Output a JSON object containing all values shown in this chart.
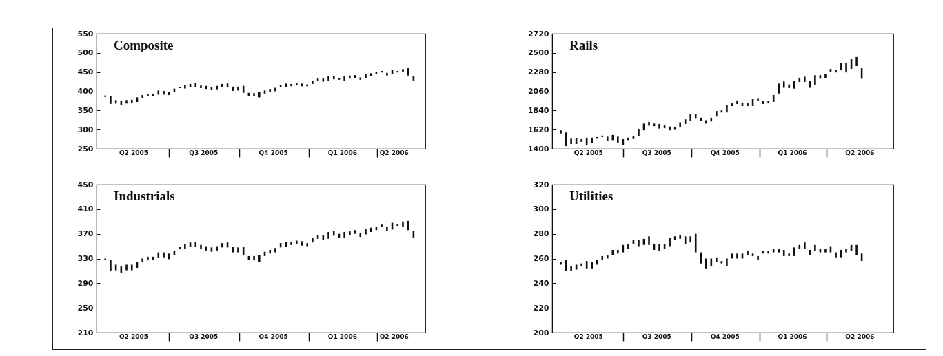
{
  "chart_data": [
    {
      "type": "bar",
      "title": "Composite",
      "color": "#111111",
      "x": [
        "2005-04-08",
        "2005-04-15",
        "2005-04-22",
        "2005-04-29",
        "2005-05-06",
        "2005-05-13",
        "2005-05-20",
        "2005-05-27",
        "2005-06-03",
        "2005-06-10",
        "2005-06-17",
        "2005-06-24",
        "2005-07-01",
        "2005-07-08",
        "2005-07-15",
        "2005-07-22",
        "2005-07-29",
        "2005-08-05",
        "2005-08-12",
        "2005-08-19",
        "2005-08-26",
        "2005-09-02",
        "2005-09-09",
        "2005-09-16",
        "2005-09-23",
        "2005-09-30",
        "2005-10-07",
        "2005-10-14",
        "2005-10-21",
        "2005-10-28",
        "2005-11-04",
        "2005-11-11",
        "2005-11-18",
        "2005-11-25",
        "2005-12-02",
        "2005-12-09",
        "2005-12-16",
        "2005-12-23",
        "2005-12-30",
        "2006-01-06",
        "2006-01-13",
        "2006-01-20",
        "2006-01-27",
        "2006-02-03",
        "2006-02-10",
        "2006-02-17",
        "2006-02-24",
        "2006-03-03",
        "2006-03-10",
        "2006-03-17",
        "2006-03-24",
        "2006-03-31",
        "2006-04-07",
        "2006-04-14",
        "2006-04-21",
        "2006-04-28",
        "2006-05-05",
        "2006-05-12",
        "2006-05-19"
      ],
      "base": [
        385,
        367,
        368,
        364,
        368,
        369,
        372,
        382,
        387,
        388,
        391,
        391,
        390,
        398,
        408,
        407,
        410,
        411,
        408,
        406,
        403,
        405,
        410,
        410,
        401,
        402,
        396,
        387,
        387,
        384,
        394,
        399,
        400,
        410,
        410,
        413,
        415,
        413,
        413,
        419,
        427,
        425,
        427,
        431,
        430,
        427,
        433,
        435,
        430,
        435,
        439,
        444,
        449,
        441,
        444,
        449,
        450,
        441,
        428
      ],
      "values": [
        4,
        20,
        9,
        11,
        9,
        9,
        12,
        8,
        6,
        5,
        11,
        10,
        8,
        9,
        2,
        10,
        9,
        10,
        7,
        8,
        7,
        9,
        9,
        10,
        11,
        10,
        18,
        9,
        8,
        14,
        8,
        7,
        9,
        7,
        10,
        6,
        6,
        7,
        5,
        9,
        6,
        8,
        12,
        9,
        5,
        12,
        8,
        7,
        6,
        11,
        8,
        6,
        4,
        7,
        12,
        4,
        8,
        19,
        12
      ],
      "xlim": [
        "2005-04-01",
        "2006-05-30"
      ],
      "ylim": [
        250,
        550
      ],
      "yticks": [
        250,
        300,
        350,
        400,
        450,
        500,
        550
      ],
      "xticks": [
        {
          "value": "2005-05-15",
          "label": "Q2 2005"
        },
        {
          "value": "2005-07-01",
          "label": null
        },
        {
          "value": "2005-08-15",
          "label": "Q3 2005"
        },
        {
          "value": "2005-10-01",
          "label": null
        },
        {
          "value": "2005-11-15",
          "label": "Q4 2005"
        },
        {
          "value": "2006-01-01",
          "label": null
        },
        {
          "value": "2006-02-14",
          "label": "Q1 2006"
        },
        {
          "value": "2006-04-01",
          "label": null
        },
        {
          "value": "2006-04-23",
          "label": "Q2 2006"
        }
      ]
    },
    {
      "type": "bar",
      "title": "Rails",
      "color": "#111111",
      "x": [
        "2005-04-08",
        "2005-04-15",
        "2005-04-22",
        "2005-04-29",
        "2005-05-06",
        "2005-05-13",
        "2005-05-20",
        "2005-05-27",
        "2005-06-03",
        "2005-06-10",
        "2005-06-17",
        "2005-06-24",
        "2005-07-01",
        "2005-07-08",
        "2005-07-15",
        "2005-07-22",
        "2005-07-29",
        "2005-08-05",
        "2005-08-12",
        "2005-08-19",
        "2005-08-26",
        "2005-09-02",
        "2005-09-09",
        "2005-09-16",
        "2005-09-23",
        "2005-09-30",
        "2005-10-07",
        "2005-10-14",
        "2005-10-21",
        "2005-10-28",
        "2005-11-04",
        "2005-11-11",
        "2005-11-18",
        "2005-11-25",
        "2005-12-02",
        "2005-12-09",
        "2005-12-16",
        "2005-12-23",
        "2005-12-30",
        "2006-01-06",
        "2006-01-13",
        "2006-01-20",
        "2006-01-27",
        "2006-02-03",
        "2006-02-10",
        "2006-02-17",
        "2006-02-24",
        "2006-03-03",
        "2006-03-10",
        "2006-03-17",
        "2006-03-24",
        "2006-03-31",
        "2006-04-07",
        "2006-04-14",
        "2006-04-21",
        "2006-04-28",
        "2006-05-05",
        "2006-05-12",
        "2006-05-19"
      ],
      "base": [
        1576,
        1431,
        1455,
        1455,
        1480,
        1439,
        1468,
        1516,
        1535,
        1487,
        1492,
        1472,
        1443,
        1492,
        1511,
        1545,
        1612,
        1665,
        1660,
        1632,
        1636,
        1612,
        1617,
        1648,
        1685,
        1721,
        1745,
        1721,
        1689,
        1714,
        1769,
        1817,
        1817,
        1890,
        1914,
        1890,
        1890,
        1890,
        1950,
        1914,
        1921,
        1938,
        2034,
        2099,
        2095,
        2090,
        2167,
        2167,
        2099,
        2131,
        2203,
        2210,
        2283,
        2276,
        2300,
        2276,
        2317,
        2348,
        2203
      ],
      "values": [
        36,
        157,
        61,
        66,
        31,
        89,
        60,
        19,
        17,
        53,
        67,
        68,
        68,
        36,
        34,
        79,
        77,
        44,
        29,
        53,
        36,
        44,
        31,
        56,
        53,
        79,
        55,
        36,
        39,
        43,
        65,
        24,
        85,
        31,
        41,
        41,
        36,
        79,
        24,
        36,
        29,
        79,
        114,
        73,
        43,
        90,
        48,
        60,
        80,
        113,
        41,
        49,
        34,
        31,
        84,
        113,
        110,
        104,
        121
      ],
      "xlim": [
        "2005-04-01",
        "2006-06-26"
      ],
      "ylim": [
        1400,
        2720
      ],
      "yticks": [
        1400,
        1620,
        1840,
        2060,
        2280,
        2500,
        2720
      ],
      "xticks": [
        {
          "value": "2005-05-15",
          "label": "Q2 2005"
        },
        {
          "value": "2005-07-01",
          "label": null
        },
        {
          "value": "2005-08-15",
          "label": "Q3 2005"
        },
        {
          "value": "2005-10-01",
          "label": null
        },
        {
          "value": "2005-11-15",
          "label": "Q4 2005"
        },
        {
          "value": "2006-01-01",
          "label": null
        },
        {
          "value": "2006-02-14",
          "label": "Q1 2006"
        },
        {
          "value": "2006-04-01",
          "label": null
        },
        {
          "value": "2006-05-16",
          "label": "Q2 2006"
        }
      ]
    },
    {
      "type": "bar",
      "title": "Industrials",
      "color": "#111111",
      "x": [
        "2005-04-08",
        "2005-04-15",
        "2005-04-22",
        "2005-04-29",
        "2005-05-06",
        "2005-05-13",
        "2005-05-20",
        "2005-05-27",
        "2005-06-03",
        "2005-06-10",
        "2005-06-17",
        "2005-06-24",
        "2005-07-01",
        "2005-07-08",
        "2005-07-15",
        "2005-07-22",
        "2005-07-29",
        "2005-08-05",
        "2005-08-12",
        "2005-08-19",
        "2005-08-26",
        "2005-09-02",
        "2005-09-09",
        "2005-09-16",
        "2005-09-23",
        "2005-09-30",
        "2005-10-07",
        "2005-10-14",
        "2005-10-21",
        "2005-10-28",
        "2005-11-04",
        "2005-11-11",
        "2005-11-18",
        "2005-11-25",
        "2005-12-02",
        "2005-12-09",
        "2005-12-16",
        "2005-12-23",
        "2005-12-30",
        "2006-01-06",
        "2006-01-13",
        "2006-01-20",
        "2006-01-27",
        "2006-02-03",
        "2006-02-10",
        "2006-02-17",
        "2006-02-24",
        "2006-03-03",
        "2006-03-10",
        "2006-03-17",
        "2006-03-24",
        "2006-03-31",
        "2006-04-07",
        "2006-04-14",
        "2006-04-21",
        "2006-04-28",
        "2006-05-05",
        "2006-05-12",
        "2006-05-19"
      ],
      "base": [
        328,
        310,
        311,
        307,
        311,
        311,
        315,
        324,
        327,
        328,
        331,
        332,
        329,
        336,
        345,
        346,
        349,
        349,
        345,
        343,
        341,
        343,
        348,
        348,
        340,
        340,
        336,
        328,
        327,
        325,
        334,
        338,
        340,
        348,
        349,
        352,
        354,
        351,
        350,
        356,
        362,
        360,
        362,
        367,
        364,
        363,
        368,
        370,
        365,
        369,
        373,
        376,
        381,
        375,
        377,
        383,
        382,
        376,
        364
      ],
      "values": [
        2,
        18,
        9,
        10,
        9,
        9,
        10,
        6,
        6,
        5,
        9,
        8,
        9,
        7,
        4,
        7,
        7,
        8,
        7,
        7,
        7,
        7,
        7,
        8,
        9,
        8,
        13,
        6,
        7,
        11,
        7,
        6,
        7,
        7,
        8,
        5,
        5,
        7,
        5,
        8,
        6,
        8,
        11,
        8,
        6,
        10,
        6,
        6,
        6,
        9,
        7,
        5,
        4,
        6,
        11,
        3,
        8,
        15,
        11
      ],
      "xlim": [
        "2005-04-01",
        "2006-05-30"
      ],
      "ylim": [
        210,
        450
      ],
      "yticks": [
        210,
        250,
        290,
        330,
        370,
        410,
        450
      ],
      "xticks": [
        {
          "value": "2005-05-15",
          "label": "Q2 2005"
        },
        {
          "value": "2005-07-01",
          "label": null
        },
        {
          "value": "2005-08-15",
          "label": "Q3 2005"
        },
        {
          "value": "2005-10-01",
          "label": null
        },
        {
          "value": "2005-11-15",
          "label": "Q4 2005"
        },
        {
          "value": "2006-01-01",
          "label": null
        },
        {
          "value": "2006-02-14",
          "label": "Q1 2006"
        },
        {
          "value": "2006-04-01",
          "label": null
        },
        {
          "value": "2006-04-23",
          "label": "Q2 2006"
        }
      ]
    },
    {
      "type": "bar",
      "title": "Utilities",
      "color": "#111111",
      "x": [
        "2005-04-08",
        "2005-04-15",
        "2005-04-22",
        "2005-04-29",
        "2005-05-06",
        "2005-05-13",
        "2005-05-20",
        "2005-05-27",
        "2005-06-03",
        "2005-06-10",
        "2005-06-17",
        "2005-06-24",
        "2005-07-01",
        "2005-07-08",
        "2005-07-15",
        "2005-07-22",
        "2005-07-29",
        "2005-08-05",
        "2005-08-12",
        "2005-08-19",
        "2005-08-26",
        "2005-09-02",
        "2005-09-09",
        "2005-09-16",
        "2005-09-23",
        "2005-09-30",
        "2005-10-07",
        "2005-10-14",
        "2005-10-21",
        "2005-10-28",
        "2005-11-04",
        "2005-11-11",
        "2005-11-18",
        "2005-11-25",
        "2005-12-02",
        "2005-12-09",
        "2005-12-16",
        "2005-12-23",
        "2005-12-30",
        "2006-01-06",
        "2006-01-13",
        "2006-01-20",
        "2006-01-27",
        "2006-02-03",
        "2006-02-10",
        "2006-02-17",
        "2006-02-24",
        "2006-03-03",
        "2006-03-10",
        "2006-03-17",
        "2006-03-24",
        "2006-03-31",
        "2006-04-07",
        "2006-04-14",
        "2006-04-21",
        "2006-04-28",
        "2006-05-05",
        "2006-05-12",
        "2006-05-19"
      ],
      "base": [
        255,
        250,
        250,
        251,
        254,
        252,
        252,
        255,
        259,
        260,
        263,
        264,
        265,
        268,
        272,
        270,
        271,
        271,
        267,
        266,
        268,
        270,
        275,
        276,
        272,
        273,
        265,
        256,
        252,
        254,
        257,
        256,
        254,
        260,
        260,
        260,
        263,
        262,
        259,
        264,
        264,
        265,
        265,
        262,
        262,
        262,
        268,
        268,
        263,
        266,
        265,
        265,
        265,
        261,
        261,
        265,
        266,
        263,
        258
      ],
      "values": [
        2,
        9,
        4,
        4,
        2,
        6,
        5,
        4,
        3,
        3,
        4,
        3,
        6,
        4,
        3,
        5,
        5,
        7,
        5,
        6,
        4,
        7,
        3,
        3,
        6,
        5,
        15,
        9,
        8,
        6,
        4,
        2,
        6,
        4,
        4,
        4,
        3,
        2,
        3,
        2,
        2,
        3,
        3,
        5,
        2,
        7,
        3,
        5,
        4,
        5,
        3,
        3,
        5,
        4,
        6,
        3,
        5,
        8,
        6
      ],
      "xlim": [
        "2005-04-01",
        "2006-06-26"
      ],
      "ylim": [
        200,
        320
      ],
      "yticks": [
        200,
        220,
        240,
        260,
        280,
        300,
        320
      ],
      "xticks": [
        {
          "value": "2005-05-15",
          "label": "Q2 2005"
        },
        {
          "value": "2005-07-01",
          "label": null
        },
        {
          "value": "2005-08-15",
          "label": "Q3 2005"
        },
        {
          "value": "2005-10-01",
          "label": null
        },
        {
          "value": "2005-11-15",
          "label": "Q4 2005"
        },
        {
          "value": "2006-01-01",
          "label": null
        },
        {
          "value": "2006-02-14",
          "label": "Q1 2006"
        },
        {
          "value": "2006-04-01",
          "label": null
        },
        {
          "value": "2006-05-16",
          "label": "Q2 2006"
        }
      ]
    }
  ]
}
